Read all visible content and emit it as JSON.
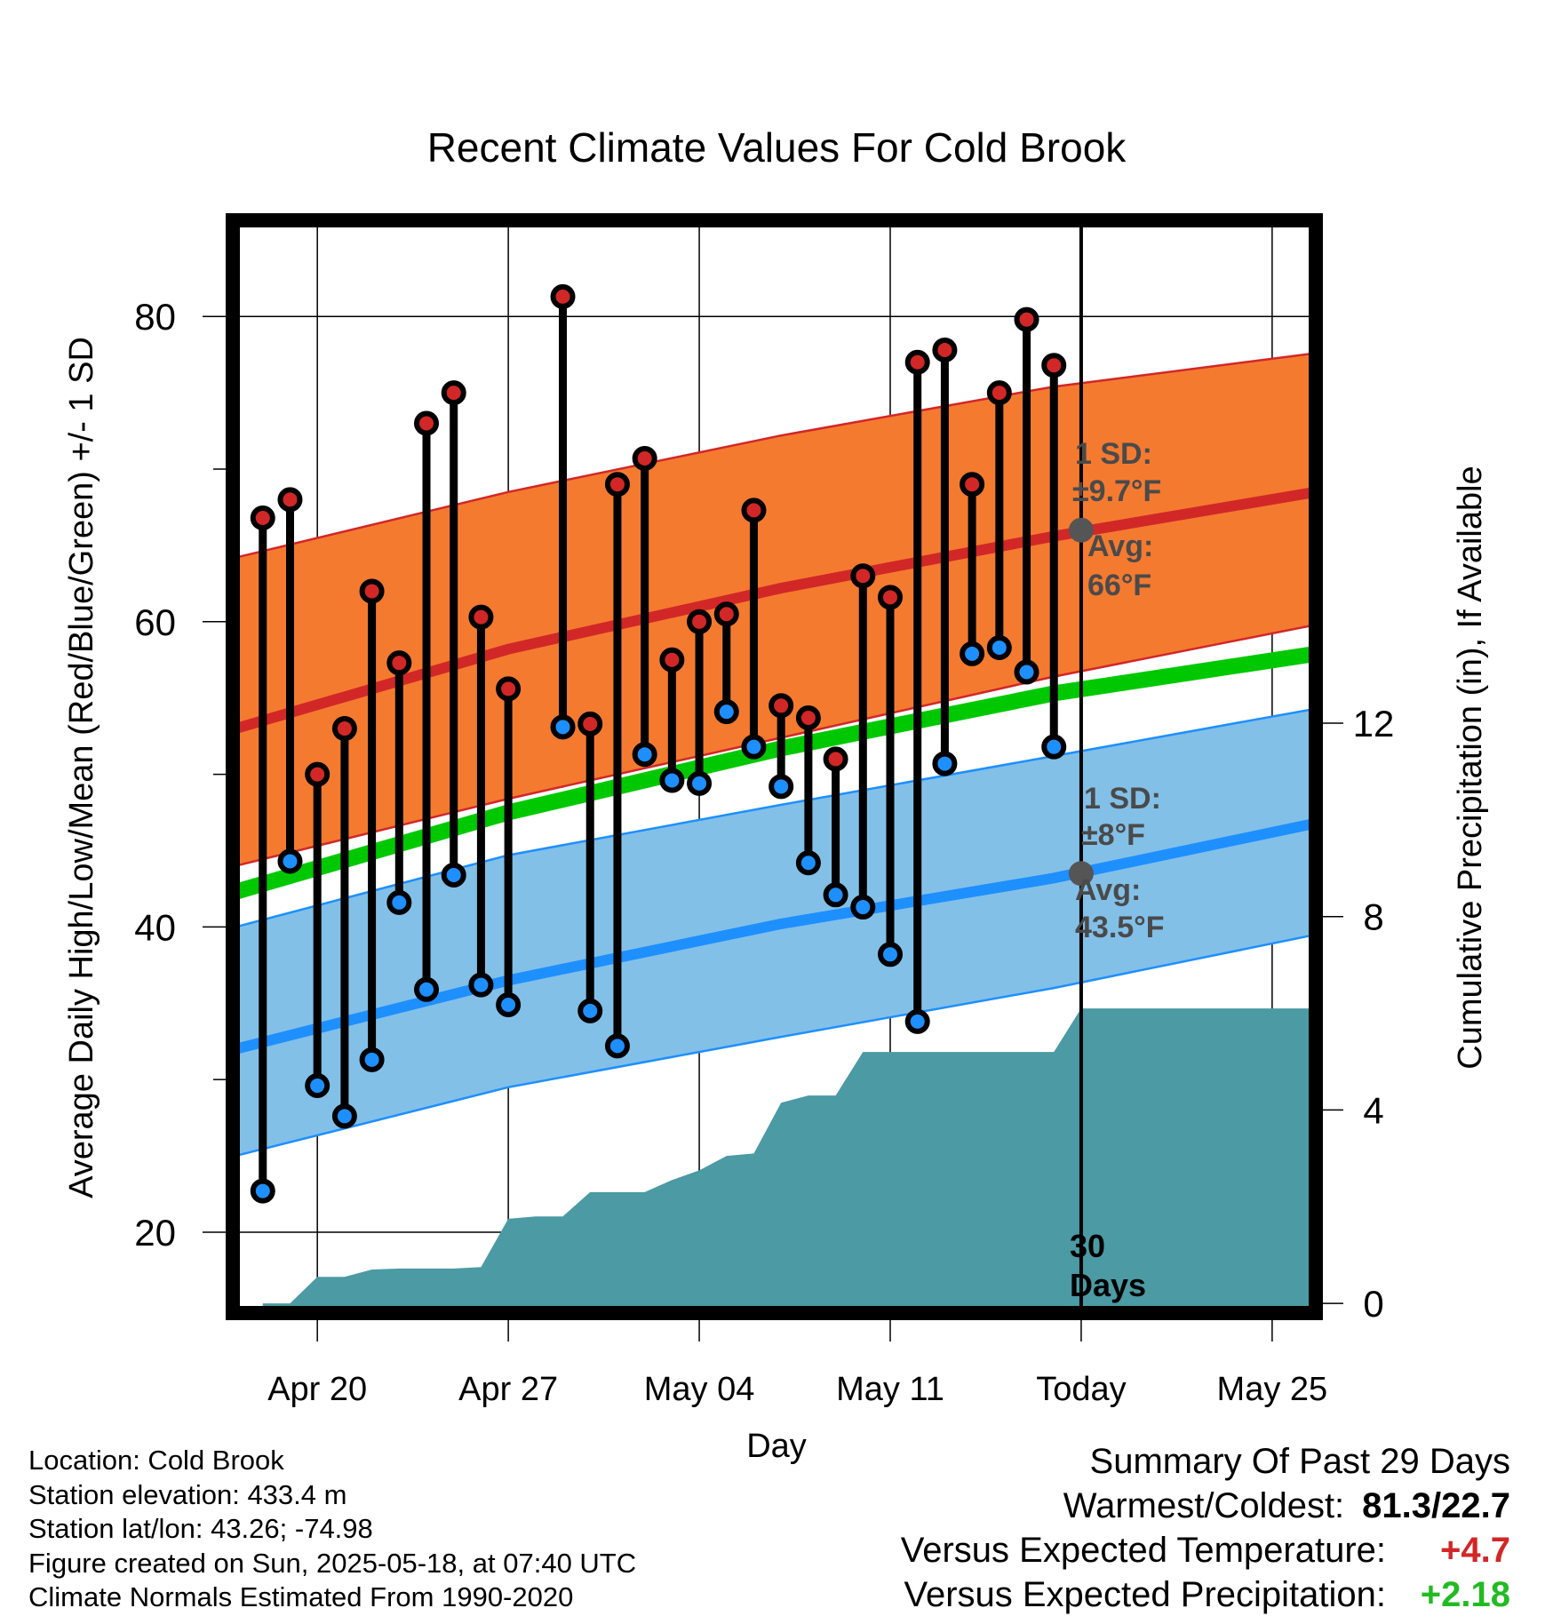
{
  "chart_data": {
    "type": "line",
    "title": "Recent Climate Values For Cold Brook",
    "xlabel": "Day",
    "ylabel": "Average Daily High/Low/Mean (Red/Blue/Green) +/- 1 SD",
    "y2label": "Cumulative Precipitation (in), If Available",
    "x_ticks": [
      "Apr 20",
      "Apr 27",
      "May 04",
      "May 11",
      "Today",
      "May 25"
    ],
    "x_tick_day": [
      20,
      27,
      34,
      41,
      48,
      55
    ],
    "xlim": [
      16.9,
      56.6
    ],
    "ylim": [
      14.7,
      86.3
    ],
    "y_ticks": [
      20,
      40,
      60,
      80
    ],
    "y2lim": [
      -0.2,
      22.4
    ],
    "y2_ticks": [
      0,
      4,
      8,
      12
    ],
    "grid": true,
    "today_day": 48,
    "today_label": "30 Days",
    "daily_obs": {
      "day": [
        18,
        19,
        20,
        21,
        22,
        23,
        24,
        25,
        26,
        27,
        29,
        30,
        31,
        32,
        33,
        34,
        35,
        36,
        37,
        38,
        39,
        40,
        41,
        42,
        43,
        44,
        45,
        46,
        47
      ],
      "high": [
        66.8,
        68,
        50,
        53,
        62,
        57.3,
        73,
        75,
        60.3,
        55.6,
        81.3,
        53.3,
        69,
        70.7,
        57.5,
        60,
        60.5,
        67.3,
        54.5,
        53.7,
        51,
        63,
        61.6,
        77,
        77.8,
        69,
        75,
        79.8,
        76.8
      ],
      "low": [
        22.7,
        44.3,
        29.6,
        27.6,
        31.3,
        41.6,
        35.9,
        43.4,
        36.2,
        34.9,
        53.1,
        34.5,
        32.2,
        51.3,
        49.6,
        49.4,
        54.1,
        51.8,
        49.2,
        44.2,
        42.1,
        41.3,
        38.2,
        33.8,
        50.7,
        57.9,
        58.3,
        56.7,
        51.8
      ]
    },
    "normals": {
      "day": [
        17,
        27,
        37,
        47,
        56.6
      ],
      "high_avg": [
        53,
        58.2,
        62.2,
        65.6,
        68.5
      ],
      "high_upper": [
        64.2,
        68.5,
        72.2,
        75.4,
        77.6
      ],
      "high_lower": [
        44,
        48.4,
        52.4,
        56.4,
        59.8
      ],
      "mean_avg": [
        42.3,
        47.5,
        51.7,
        55.3,
        57.9
      ],
      "low_avg": [
        32,
        36.5,
        40.2,
        43.2,
        46.8
      ],
      "low_upper": [
        40,
        44.7,
        48,
        51.2,
        54.3
      ],
      "low_lower": [
        25,
        29.5,
        32.8,
        36,
        39.5
      ]
    },
    "precip": {
      "day": [
        18,
        19,
        20,
        21,
        22,
        23,
        24,
        25,
        26,
        27,
        28,
        29,
        30,
        31,
        32,
        33,
        34,
        35,
        36,
        37,
        38,
        39,
        40,
        41,
        42,
        43,
        44,
        45,
        46,
        47,
        48,
        49,
        50,
        51,
        52,
        53,
        54,
        55,
        56,
        56.6
      ],
      "cum": [
        0,
        0,
        0.55,
        0.55,
        0.7,
        0.72,
        0.72,
        0.72,
        0.75,
        1.75,
        1.8,
        1.8,
        2.3,
        2.3,
        2.3,
        2.55,
        2.75,
        3.05,
        3.1,
        4.15,
        4.3,
        4.3,
        5.2,
        5.2,
        5.2,
        5.2,
        5.2,
        5.2,
        5.2,
        5.2,
        6.1,
        6.1,
        6.1,
        6.1,
        6.1,
        6.1,
        6.1,
        6.1,
        6.1,
        6.1
      ]
    },
    "annotations": {
      "high_sd_title": "1 SD:",
      "high_sd_value": "±9.7°F",
      "high_avg_title": "Avg:",
      "high_avg_value": "66°F",
      "high_avg_marker": 66,
      "low_sd_title": "1 SD:",
      "low_sd_value": "±8°F",
      "low_avg_title": "Avg:",
      "low_avg_value": "43.5°F",
      "low_avg_marker": 43.5
    },
    "colors": {
      "high_band": "#f47a30",
      "high_line": "#d22727",
      "low_band": "#82c0e8",
      "low_line": "#1e8fff",
      "mean_line": "#00c800",
      "precip": "#4b9aa4",
      "high_dot": "#d22727",
      "low_dot": "#1e8fff",
      "annotation": "#4a4a4a"
    }
  },
  "info": {
    "location": "Location: Cold Brook",
    "elevation": "Station elevation: 433.4 m",
    "latlon": "Station lat/lon: 43.26; -74.98",
    "created": "Figure created on Sun, 2025-05-18, at 07:40 UTC",
    "normals": "Climate Normals Estimated From 1990-2020"
  },
  "summary": {
    "title": "Summary Of Past 29 Days",
    "warmest_coldest_label": "Warmest/Coldest:",
    "warmest_coldest_value": "81.3/22.7",
    "temp_label": "Versus Expected Temperature:",
    "temp_value": "+4.7",
    "temp_color": "#d22727",
    "precip_label": "Versus Expected Precipitation:",
    "precip_value": "+2.18",
    "precip_color": "#22bb22"
  }
}
